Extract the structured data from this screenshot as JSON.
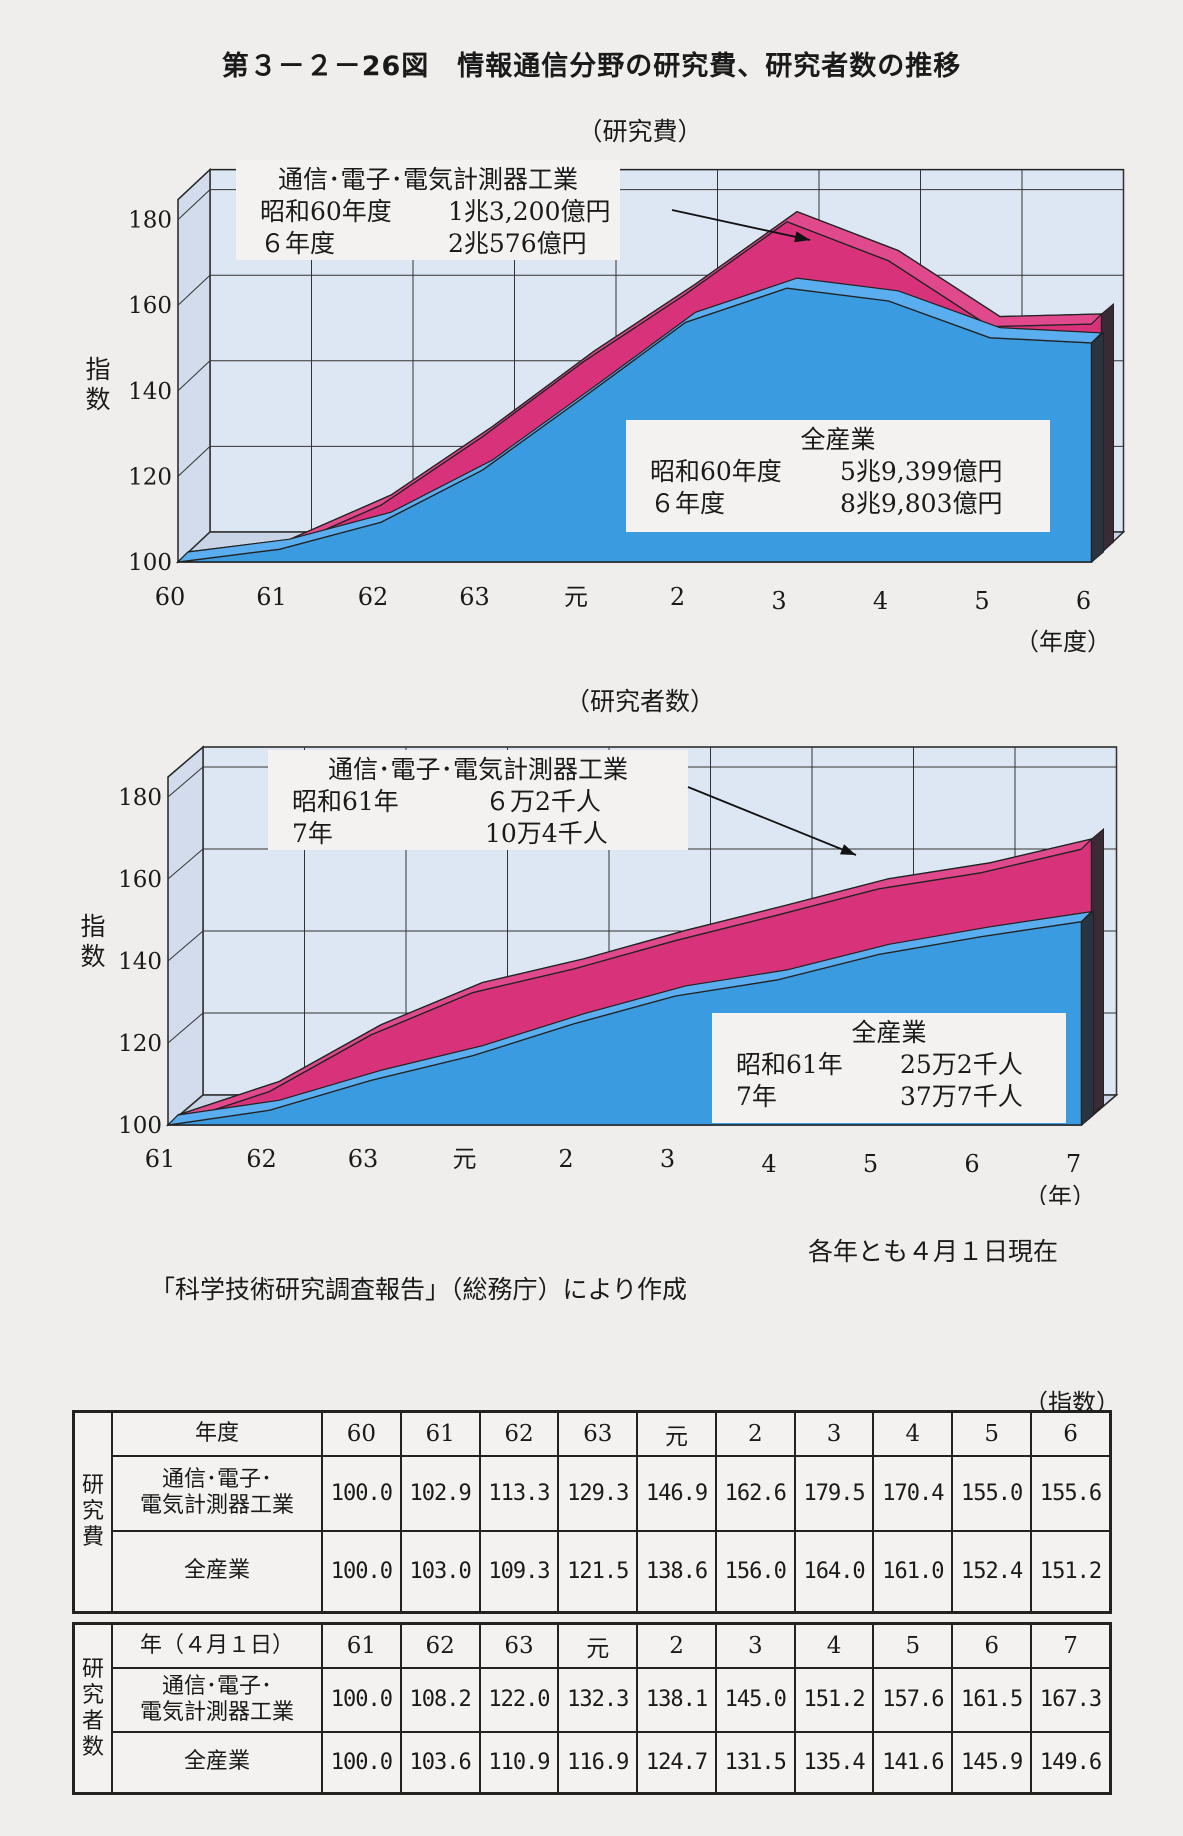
{
  "figure": {
    "title": "第３－２－26図　情報通信分野の研究費、研究者数の推移"
  },
  "chart_data": [
    {
      "type": "area",
      "title": "（研究費）",
      "ylabel": "指数",
      "xlabel": "（年度）",
      "ylim": [
        100,
        180
      ],
      "yticks": [
        "100",
        "120",
        "140",
        "160",
        "180"
      ],
      "categories": [
        "60",
        "61",
        "62",
        "63",
        "元",
        "2",
        "3",
        "4",
        "5",
        "6"
      ],
      "grid": true,
      "series": [
        {
          "name": "通信･電子･電気計測器工業",
          "color": "#d8327a",
          "values": [
            100.0,
            102.9,
            113.3,
            129.3,
            146.9,
            162.6,
            179.5,
            170.4,
            155.0,
            155.6
          ]
        },
        {
          "name": "全産業",
          "color": "#3a9be0",
          "values": [
            100.0,
            103.0,
            109.3,
            121.5,
            138.6,
            156.0,
            164.0,
            161.0,
            152.4,
            151.2
          ]
        }
      ],
      "annotations": [
        {
          "lines": [
            {
              "label": "通信･電子･電気計測器工業",
              "value": ""
            },
            {
              "label": "昭和60年度",
              "value": "1兆3,200億円"
            },
            {
              "label": "６年度",
              "value": "2兆576億円"
            }
          ]
        },
        {
          "lines": [
            {
              "label": "全産業",
              "value": ""
            },
            {
              "label": "昭和60年度",
              "value": "5兆9,399億円"
            },
            {
              "label": "６年度",
              "value": "8兆9,803億円"
            }
          ]
        }
      ]
    },
    {
      "type": "area",
      "title": "（研究者数）",
      "ylabel": "指数",
      "xlabel": "（年）",
      "ylim": [
        100,
        180
      ],
      "yticks": [
        "100",
        "120",
        "140",
        "160",
        "180"
      ],
      "categories": [
        "61",
        "62",
        "63",
        "元",
        "2",
        "3",
        "4",
        "5",
        "6",
        "7"
      ],
      "grid": true,
      "series": [
        {
          "name": "通信･電子･電気計測器工業",
          "color": "#d8327a",
          "values": [
            100.0,
            108.2,
            122.0,
            132.3,
            138.1,
            145.0,
            151.2,
            157.6,
            161.5,
            167.3
          ]
        },
        {
          "name": "全産業",
          "color": "#3a9be0",
          "values": [
            100.0,
            103.6,
            110.9,
            116.9,
            124.7,
            131.5,
            135.4,
            141.6,
            145.9,
            149.6
          ]
        }
      ],
      "annotations": [
        {
          "lines": [
            {
              "label": "通信･電子･電気計測器工業",
              "value": ""
            },
            {
              "label": "昭和61年",
              "value": "６万2千人"
            },
            {
              "label": "7年",
              "value": "10万4千人"
            }
          ]
        },
        {
          "lines": [
            {
              "label": "全産業",
              "value": ""
            },
            {
              "label": "昭和61年",
              "value": "25万2千人"
            },
            {
              "label": "7年",
              "value": "37万7千人"
            }
          ]
        }
      ]
    }
  ],
  "notes": {
    "as_of": "各年とも４月１日現在",
    "source": "「科学技術研究調査報告」（総務庁）により作成"
  },
  "table": {
    "unit": "（指数）",
    "cost": {
      "side": "研究費",
      "header_label": "年度",
      "years": [
        "60",
        "61",
        "62",
        "63",
        "元",
        "2",
        "3",
        "4",
        "5",
        "6"
      ],
      "rows": [
        {
          "label": "通信･電子･電気計測器工業",
          "values": [
            "100.0",
            "102.9",
            "113.3",
            "129.3",
            "146.9",
            "162.6",
            "179.5",
            "170.4",
            "155.0",
            "155.6"
          ]
        },
        {
          "label": "全産業",
          "values": [
            "100.0",
            "103.0",
            "109.3",
            "121.5",
            "138.6",
            "156.0",
            "164.0",
            "161.0",
            "152.4",
            "151.2"
          ]
        }
      ]
    },
    "researchers": {
      "side": "研究者数",
      "header_label": "年（４月１日）",
      "years": [
        "61",
        "62",
        "63",
        "元",
        "2",
        "3",
        "4",
        "5",
        "6",
        "7"
      ],
      "rows": [
        {
          "label": "通信･電子･電気計測器工業",
          "values": [
            "100.0",
            "108.2",
            "122.0",
            "132.3",
            "138.1",
            "145.0",
            "151.2",
            "157.6",
            "161.5",
            "167.3"
          ]
        },
        {
          "label": "全産業",
          "values": [
            "100.0",
            "103.6",
            "110.9",
            "116.9",
            "124.7",
            "131.5",
            "135.4",
            "141.6",
            "145.9",
            "149.6"
          ]
        }
      ]
    }
  }
}
